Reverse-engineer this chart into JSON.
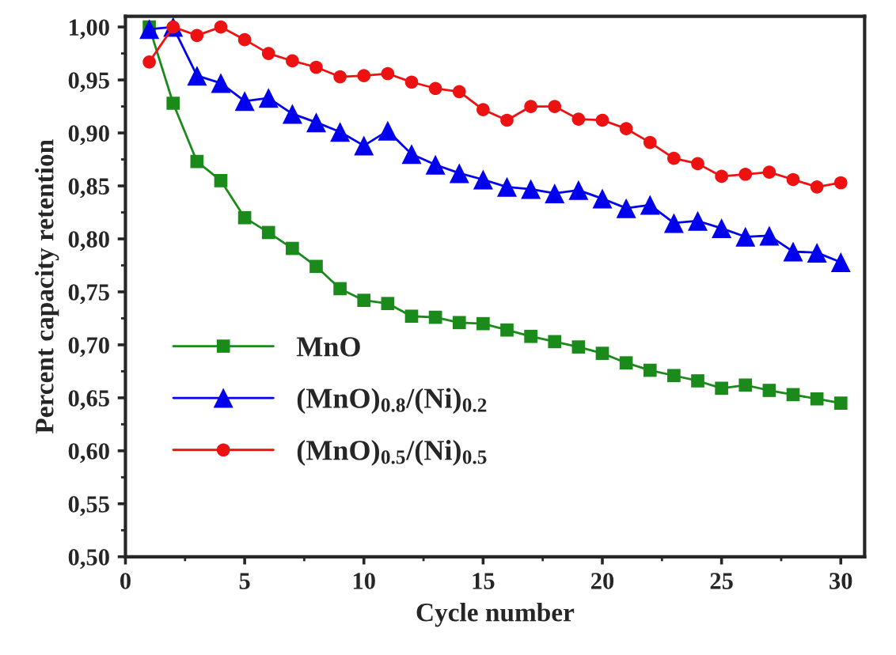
{
  "chart_data": {
    "type": "line",
    "xlabel": "Cycle number",
    "ylabel": "Percent capacity retention",
    "x": [
      1,
      2,
      3,
      4,
      5,
      6,
      7,
      8,
      9,
      10,
      11,
      12,
      13,
      14,
      15,
      16,
      17,
      18,
      19,
      20,
      21,
      22,
      23,
      24,
      25,
      26,
      27,
      28,
      29,
      30
    ],
    "series": [
      {
        "name": "MnO",
        "color": "#1a8a1a",
        "marker": "square",
        "values": [
          1.0,
          0.928,
          0.873,
          0.855,
          0.82,
          0.806,
          0.791,
          0.774,
          0.753,
          0.742,
          0.739,
          0.727,
          0.726,
          0.721,
          0.72,
          0.714,
          0.708,
          0.703,
          0.698,
          0.692,
          0.683,
          0.676,
          0.671,
          0.666,
          0.659,
          0.662,
          0.657,
          0.653,
          0.649,
          0.645
        ]
      },
      {
        "name": "(MnO)$_{0.8}$/(Ni)$_{0.2}$",
        "color": "#0000ee",
        "marker": "triangle",
        "values": [
          0.998,
          1.0,
          0.954,
          0.947,
          0.93,
          0.933,
          0.918,
          0.91,
          0.901,
          0.888,
          0.902,
          0.88,
          0.87,
          0.862,
          0.856,
          0.849,
          0.847,
          0.843,
          0.846,
          0.838,
          0.829,
          0.832,
          0.815,
          0.817,
          0.81,
          0.802,
          0.803,
          0.788,
          0.787,
          0.778
        ]
      },
      {
        "name": "(MnO)$_{0.5}$/(Ni)$_{0.5}$",
        "color": "#ee1111",
        "marker": "circle",
        "values": [
          0.967,
          1.0,
          0.992,
          1.0,
          0.988,
          0.975,
          0.968,
          0.962,
          0.953,
          0.954,
          0.956,
          0.948,
          0.942,
          0.939,
          0.922,
          0.912,
          0.925,
          0.925,
          0.913,
          0.912,
          0.904,
          0.891,
          0.876,
          0.871,
          0.859,
          0.861,
          0.863,
          0.856,
          0.849,
          0.853
        ]
      }
    ],
    "xlim": [
      0,
      31
    ],
    "xticks": [
      0,
      5,
      10,
      15,
      20,
      25,
      30
    ],
    "ylim": [
      0.5,
      1.01
    ],
    "yticks": [
      {
        "value": 0.5,
        "label": "0,50"
      },
      {
        "value": 0.55,
        "label": "0,55"
      },
      {
        "value": 0.6,
        "label": "0,60"
      },
      {
        "value": 0.65,
        "label": "0,65"
      },
      {
        "value": 0.7,
        "label": "0,70"
      },
      {
        "value": 0.75,
        "label": "0,75"
      },
      {
        "value": 0.8,
        "label": "0,80"
      },
      {
        "value": 0.85,
        "label": "0,85"
      },
      {
        "value": 0.9,
        "label": "0,90"
      },
      {
        "value": 0.95,
        "label": "0,95"
      },
      {
        "value": 1.0,
        "label": "1,00"
      }
    ],
    "grid": false,
    "legend": "lower left"
  }
}
